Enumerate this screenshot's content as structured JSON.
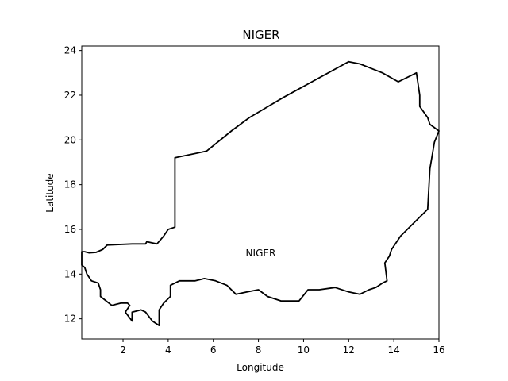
{
  "chart_data": {
    "type": "map",
    "title": "NIGER",
    "xlabel": "Longitude",
    "ylabel": "Latitude",
    "xlim": [
      0.17,
      16.0
    ],
    "ylim": [
      11.1,
      24.2
    ],
    "xticks": [
      2,
      4,
      6,
      8,
      10,
      12,
      14,
      16
    ],
    "yticks": [
      12,
      14,
      16,
      18,
      20,
      22,
      24
    ],
    "grid": false,
    "annotations": [
      {
        "text": "NIGER",
        "x": 8.1,
        "y": 14.8
      }
    ],
    "boundary": [
      [
        0.17,
        15.0
      ],
      [
        0.3,
        15.0
      ],
      [
        0.5,
        14.95
      ],
      [
        0.8,
        14.97
      ],
      [
        1.1,
        15.1
      ],
      [
        1.3,
        15.3
      ],
      [
        2.4,
        15.35
      ],
      [
        3.0,
        15.35
      ],
      [
        3.05,
        15.45
      ],
      [
        3.5,
        15.35
      ],
      [
        3.8,
        15.7
      ],
      [
        4.0,
        16.0
      ],
      [
        4.3,
        16.1
      ],
      [
        4.3,
        19.2
      ],
      [
        5.7,
        19.5
      ],
      [
        6.8,
        20.4
      ],
      [
        7.6,
        21.0
      ],
      [
        9.1,
        21.9
      ],
      [
        12.0,
        23.5
      ],
      [
        12.5,
        23.4
      ],
      [
        13.0,
        23.2
      ],
      [
        13.5,
        23.0
      ],
      [
        14.2,
        22.6
      ],
      [
        15.0,
        23.0
      ],
      [
        15.15,
        22.0
      ],
      [
        15.15,
        21.5
      ],
      [
        15.5,
        21.0
      ],
      [
        15.6,
        20.7
      ],
      [
        16.0,
        20.4
      ],
      [
        15.8,
        19.9
      ],
      [
        15.6,
        18.7
      ],
      [
        15.5,
        16.9
      ],
      [
        14.9,
        16.3
      ],
      [
        14.3,
        15.7
      ],
      [
        13.9,
        15.1
      ],
      [
        13.8,
        14.8
      ],
      [
        13.6,
        14.5
      ],
      [
        13.7,
        13.7
      ],
      [
        13.5,
        13.6
      ],
      [
        13.2,
        13.4
      ],
      [
        12.9,
        13.3
      ],
      [
        12.5,
        13.1
      ],
      [
        12.0,
        13.2
      ],
      [
        11.4,
        13.4
      ],
      [
        10.7,
        13.3
      ],
      [
        10.2,
        13.3
      ],
      [
        9.8,
        12.8
      ],
      [
        9.0,
        12.8
      ],
      [
        8.4,
        13.0
      ],
      [
        8.0,
        13.3
      ],
      [
        7.5,
        13.2
      ],
      [
        7.0,
        13.1
      ],
      [
        6.6,
        13.5
      ],
      [
        6.1,
        13.7
      ],
      [
        5.6,
        13.8
      ],
      [
        5.2,
        13.7
      ],
      [
        4.5,
        13.7
      ],
      [
        4.1,
        13.5
      ],
      [
        4.1,
        13.0
      ],
      [
        3.8,
        12.7
      ],
      [
        3.6,
        12.4
      ],
      [
        3.6,
        11.7
      ],
      [
        3.3,
        11.9
      ],
      [
        3.0,
        12.3
      ],
      [
        2.8,
        12.4
      ],
      [
        2.4,
        12.3
      ],
      [
        2.4,
        11.9
      ],
      [
        2.1,
        12.3
      ],
      [
        2.3,
        12.6
      ],
      [
        2.2,
        12.7
      ],
      [
        1.9,
        12.7
      ],
      [
        1.5,
        12.6
      ],
      [
        1.0,
        13.0
      ],
      [
        1.0,
        13.3
      ],
      [
        0.9,
        13.6
      ],
      [
        0.6,
        13.7
      ],
      [
        0.4,
        14.0
      ],
      [
        0.3,
        14.3
      ],
      [
        0.17,
        14.4
      ],
      [
        0.17,
        15.0
      ]
    ]
  }
}
